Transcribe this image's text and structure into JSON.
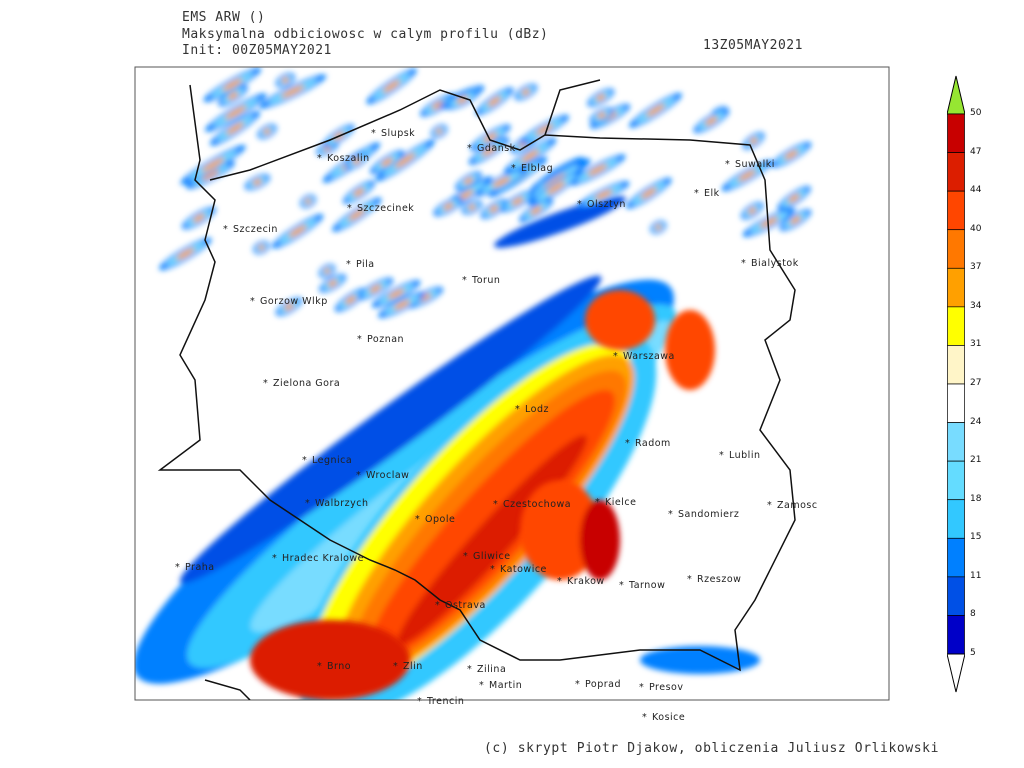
{
  "header": {
    "model": "EMS ARW ()",
    "field": "Maksymalna odbiciowosc w calym profilu (dBz)",
    "init": "Init: 00Z05MAY2021",
    "valid_time": "13Z05MAY2021"
  },
  "colorbar": {
    "unit": "dBz",
    "ticks": [
      "5",
      "8",
      "11",
      "15",
      "18",
      "21",
      "24",
      "27",
      "31",
      "34",
      "37",
      "40",
      "44",
      "47",
      "50"
    ],
    "colors": [
      "#0000c8",
      "#0050e6",
      "#0080ff",
      "#32c8ff",
      "#64dcff",
      "#78dcff",
      "#ffffff",
      "#fff5c8",
      "#ffff00",
      "#ffa000",
      "#ff7800",
      "#ff4600",
      "#dc1e00",
      "#c80000"
    ],
    "over_color": "#96e632",
    "under_color": "#ffffff"
  },
  "cities": [
    "Slupsk",
    "Koszalin",
    "Gdansk",
    "Elblag",
    "Szczecinek",
    "Szczecin",
    "Olsztyn",
    "Suwalki",
    "Elk",
    "Pila",
    "Torun",
    "Bialystok",
    "Gorzow Wlkp",
    "Poznan",
    "Warszawa",
    "Zielona Gora",
    "Lodz",
    "Radom",
    "Lublin",
    "Legnica",
    "Wroclaw",
    "Walbrzych",
    "Czestochowa",
    "Kielce",
    "Opole",
    "Sandomierz",
    "Zamosc",
    "Hradec Kralowe",
    "Praha",
    "Gliwice",
    "Katowice",
    "Krakow",
    "Tarnow",
    "Rzeszow",
    "Ostrava",
    "Brno",
    "Zlin",
    "Zilina",
    "Martin",
    "Poprad",
    "Presov",
    "Trencin",
    "Kosice"
  ],
  "credit": "(c) skrypt Piotr Djakow, obliczenia Juliusz Orlikowski"
}
